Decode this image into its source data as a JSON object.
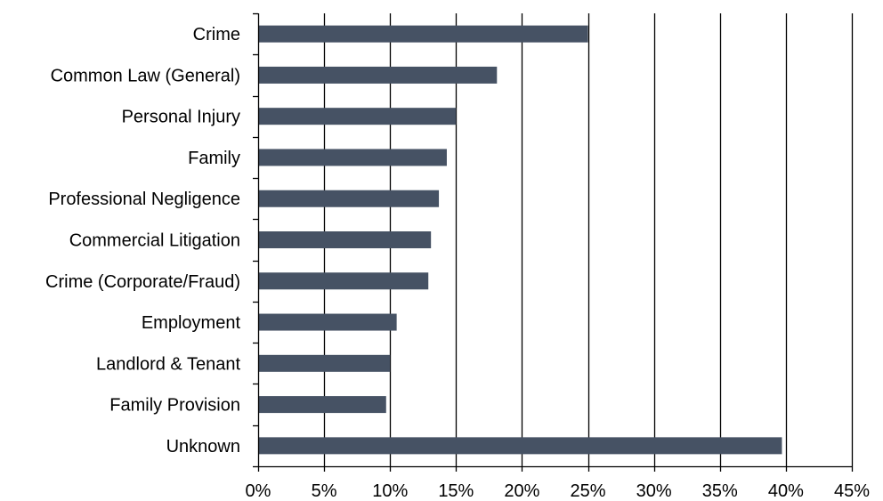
{
  "chart_data": {
    "type": "bar",
    "orientation": "horizontal",
    "title": "",
    "xlabel": "",
    "ylabel": "",
    "categories": [
      "Crime",
      "Common Law (General)",
      "Personal Injury",
      "Family",
      "Professional Negligence",
      "Commercial Litigation",
      "Crime (Corporate/Fraud)",
      "Employment",
      "Landlord & Tenant",
      "Family Provision",
      "Unknown"
    ],
    "values": [
      25.0,
      18.1,
      15.0,
      14.3,
      13.7,
      13.1,
      12.9,
      10.5,
      10.0,
      9.7,
      39.7
    ],
    "xlim": [
      0,
      45
    ],
    "x_ticks": [
      0,
      5,
      10,
      15,
      20,
      25,
      30,
      35,
      40,
      45
    ],
    "x_tick_labels": [
      "0%",
      "5%",
      "10%",
      "15%",
      "20%",
      "25%",
      "30%",
      "35%",
      "40%",
      "45%"
    ],
    "grid": "vertical",
    "legend": "none",
    "bar_color": "#465264",
    "grid_color": "#000000"
  }
}
